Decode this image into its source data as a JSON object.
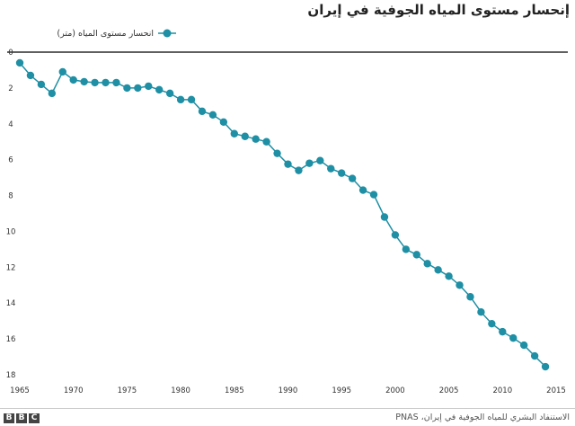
{
  "chart_data": {
    "type": "line",
    "title": "إنحسار مستوى المياه الجوفية في إيران",
    "series": [
      {
        "name": "انحسار مستوى المياه (متر)",
        "color": "#1e8fa4",
        "x": [
          1965,
          1966,
          1967,
          1968,
          1969,
          1970,
          1971,
          1972,
          1973,
          1974,
          1975,
          1976,
          1977,
          1978,
          1979,
          1980,
          1981,
          1982,
          1983,
          1984,
          1985,
          1986,
          1987,
          1988,
          1989,
          1990,
          1991,
          1992,
          1993,
          1994,
          1995,
          1996,
          1997,
          1998,
          1999,
          2000,
          2001,
          2002,
          2003,
          2004,
          2005,
          2006,
          2007,
          2008,
          2009,
          2010,
          2011,
          2012,
          2013,
          2014
        ],
        "values": [
          0.6,
          1.3,
          1.8,
          2.3,
          1.1,
          1.55,
          1.65,
          1.7,
          1.7,
          1.7,
          2.0,
          2.0,
          1.9,
          2.1,
          2.3,
          2.65,
          2.65,
          3.3,
          3.5,
          3.9,
          4.55,
          4.7,
          4.85,
          5.0,
          5.65,
          6.25,
          6.6,
          6.2,
          6.05,
          6.5,
          6.75,
          7.05,
          7.7,
          7.95,
          9.2,
          10.2,
          11.0,
          11.3,
          11.8,
          12.15,
          12.5,
          13.0,
          13.65,
          14.5,
          15.15,
          15.6,
          15.95,
          16.35,
          16.95,
          17.55
        ]
      }
    ],
    "x_ticks": [
      1965,
      1970,
      1975,
      1980,
      1985,
      1990,
      1995,
      2000,
      2005,
      2010,
      2015
    ],
    "y_ticks": [
      0,
      2,
      4,
      6,
      8,
      10,
      12,
      14,
      16,
      18
    ],
    "xlim": [
      1965,
      2015
    ],
    "ylim": [
      0,
      18
    ],
    "y_inverted": true,
    "grid": false,
    "legend_position": "top-left"
  },
  "footer": {
    "source": "الاستنفاد البشري للمياه الجوفية في إيران، PNAS",
    "logo": "BBC"
  },
  "colors": {
    "series": "#1e8fa4",
    "axis": "#000000"
  }
}
